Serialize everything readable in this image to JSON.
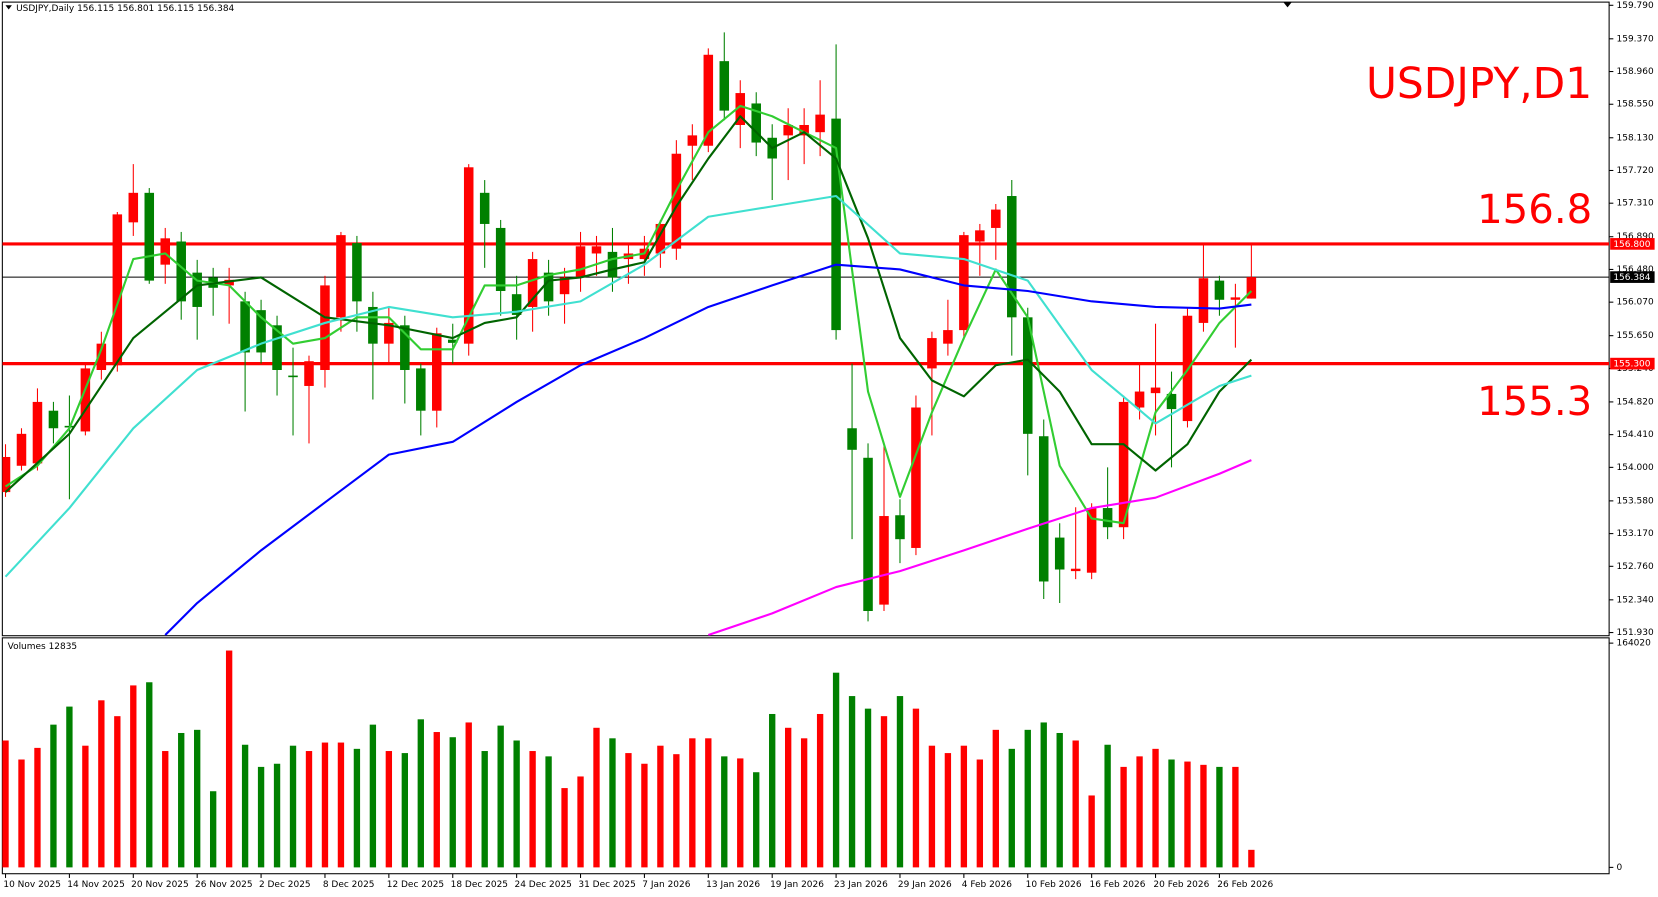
{
  "chart_data": {
    "type": "candlestick",
    "title": "USDJPY,D1",
    "header": "USDJPY,Daily  156.115 156.801 156.115 156.384",
    "up_color": "#ff0000",
    "down_color": "#008000",
    "categories": [
      "10 Nov 2025",
      null,
      null,
      null,
      "14 Nov 2025",
      null,
      null,
      null,
      "20 Nov 2025",
      null,
      null,
      null,
      "26 Nov 2025",
      null,
      null,
      null,
      "2 Dec 2025",
      null,
      null,
      null,
      "8 Dec 2025",
      null,
      null,
      null,
      "12 Dec 2025",
      null,
      null,
      null,
      "18 Dec 2025",
      null,
      null,
      null,
      "24 Dec 2025",
      null,
      null,
      null,
      "31 Dec 2025",
      null,
      null,
      null,
      "7 Jan 2026",
      null,
      null,
      null,
      "13 Jan 2026",
      null,
      null,
      null,
      "19 Jan 2026",
      null,
      null,
      null,
      "23 Jan 2026",
      null,
      null,
      null,
      "29 Jan 2026",
      null,
      null,
      null,
      "4 Feb 2026",
      null,
      null,
      null,
      "10 Feb 2026",
      null,
      null,
      null,
      "16 Feb 2026",
      null,
      null,
      null,
      "20 Feb 2026",
      null,
      null,
      null,
      "26 Feb 2026",
      null,
      null
    ],
    "open": [
      153.69,
      154.02,
      154.05,
      154.71,
      154.52,
      154.45,
      155.22,
      155.28,
      157.07,
      157.44,
      156.54,
      156.83,
      156.44,
      156.38,
      156.28,
      156.08,
      155.97,
      155.78,
      155.15,
      155.02,
      155.22,
      155.88,
      156.81,
      156.01,
      155.55,
      155.78,
      155.24,
      154.71,
      155.6,
      155.55,
      157.44,
      157.0,
      156.17,
      156.01,
      156.44,
      156.17,
      156.38,
      156.68,
      156.7,
      156.61,
      156.61,
      156.68,
      156.74,
      158.03,
      158.03,
      159.09,
      158.29,
      158.56,
      158.13,
      158.16,
      158.16,
      158.2,
      158.37,
      154.49,
      154.12,
      152.28,
      153.4,
      152.99,
      155.24,
      155.55,
      155.72,
      156.83,
      157.0,
      157.4,
      155.88,
      154.39,
      153.12,
      152.7,
      152.68,
      153.49,
      153.25,
      154.75,
      154.93,
      154.92,
      154.58,
      155.81,
      156.34,
      156.1,
      156.115
    ],
    "high": [
      154.29,
      154.49,
      154.99,
      154.82,
      154.9,
      155.3,
      155.7,
      157.2,
      157.8,
      157.5,
      157.0,
      156.95,
      156.6,
      156.5,
      156.5,
      156.2,
      156.1,
      155.9,
      155.5,
      155.4,
      156.4,
      156.95,
      156.9,
      156.2,
      156.0,
      155.9,
      155.3,
      155.75,
      155.8,
      157.8,
      157.6,
      157.1,
      156.4,
      156.7,
      156.6,
      156.5,
      156.95,
      156.9,
      157.0,
      156.8,
      156.9,
      157.1,
      158.1,
      158.3,
      159.25,
      159.45,
      158.85,
      158.7,
      158.3,
      158.5,
      158.5,
      158.85,
      159.3,
      155.3,
      154.3,
      154.3,
      153.6,
      154.9,
      155.7,
      156.1,
      156.95,
      157.05,
      157.3,
      157.6,
      156.0,
      154.6,
      153.3,
      153.5,
      153.55,
      154.0,
      154.9,
      155.3,
      155.8,
      155.2,
      156.0,
      156.8,
      156.4,
      156.3,
      156.801
    ],
    "low": [
      153.63,
      153.96,
      153.96,
      154.3,
      153.6,
      154.4,
      155.1,
      155.2,
      156.9,
      156.3,
      156.3,
      155.85,
      155.6,
      155.9,
      155.8,
      154.7,
      155.3,
      154.9,
      154.4,
      154.3,
      155.0,
      155.7,
      155.7,
      154.85,
      155.3,
      154.8,
      154.4,
      154.5,
      155.3,
      155.4,
      156.5,
      155.9,
      155.6,
      155.7,
      155.9,
      155.8,
      156.2,
      156.4,
      156.2,
      156.3,
      156.4,
      156.5,
      156.6,
      157.6,
      157.95,
      158.35,
      158.0,
      157.9,
      157.35,
      157.6,
      157.8,
      157.9,
      155.6,
      153.1,
      152.07,
      152.2,
      152.8,
      152.9,
      154.4,
      155.4,
      155.6,
      156.4,
      156.6,
      155.4,
      153.9,
      152.35,
      152.3,
      152.6,
      152.6,
      153.1,
      153.1,
      154.6,
      154.4,
      154.0,
      154.5,
      155.7,
      155.9,
      155.5,
      156.115
    ],
    "close": [
      154.13,
      154.42,
      154.82,
      154.49,
      154.5,
      155.24,
      155.55,
      157.17,
      157.44,
      156.34,
      156.87,
      156.08,
      156.01,
      156.25,
      156.35,
      155.44,
      155.44,
      155.22,
      155.13,
      155.33,
      156.28,
      156.91,
      156.08,
      155.55,
      155.81,
      155.22,
      154.71,
      155.68,
      155.56,
      157.76,
      157.05,
      156.21,
      155.91,
      156.61,
      156.08,
      156.38,
      156.77,
      156.77,
      156.38,
      156.68,
      156.74,
      157.05,
      157.93,
      158.16,
      159.17,
      158.47,
      158.69,
      158.07,
      157.87,
      158.29,
      158.29,
      158.42,
      155.72,
      154.22,
      152.2,
      153.39,
      153.1,
      154.75,
      155.62,
      155.72,
      156.91,
      156.97,
      157.23,
      155.88,
      154.42,
      152.57,
      152.72,
      152.73,
      153.49,
      153.25,
      154.82,
      154.95,
      155.0,
      154.73,
      155.9,
      156.37,
      156.1,
      156.13,
      156.384
    ],
    "ylim": [
      151.93,
      159.79
    ],
    "yticks": [
      {
        "value": 159.79,
        "label": "159.790"
      },
      {
        "value": 159.37,
        "label": "159.370"
      },
      {
        "value": 158.96,
        "label": "158.960"
      },
      {
        "value": 158.55,
        "label": "158.550"
      },
      {
        "value": 158.13,
        "label": "158.130"
      },
      {
        "value": 157.72,
        "label": "157.720"
      },
      {
        "value": 157.31,
        "label": "157.310"
      },
      {
        "value": 156.89,
        "label": "156.890"
      },
      {
        "value": 156.48,
        "label": "156.480"
      },
      {
        "value": 156.07,
        "label": "156.070"
      },
      {
        "value": 155.65,
        "label": "155.650"
      },
      {
        "value": 155.24,
        "label": "155.240"
      },
      {
        "value": 154.82,
        "label": "154.820"
      },
      {
        "value": 154.41,
        "label": "154.410"
      },
      {
        "value": 154.0,
        "label": "154.000"
      },
      {
        "value": 153.58,
        "label": "153.580"
      },
      {
        "value": 153.17,
        "label": "153.170"
      },
      {
        "value": 152.76,
        "label": "152.760"
      },
      {
        "value": 152.34,
        "label": "152.340"
      },
      {
        "value": 151.93,
        "label": "151.930"
      }
    ],
    "lines": [
      {
        "color": "#32cd32",
        "x": [
          0,
          2,
          4,
          6,
          8,
          10,
          12,
          14,
          16,
          18,
          20,
          22,
          24,
          26,
          28,
          30,
          32,
          34,
          36,
          38,
          40,
          42,
          44,
          46,
          48,
          50,
          52,
          54,
          56,
          58,
          60,
          62,
          64,
          66,
          68,
          70,
          72,
          74,
          76,
          78
        ],
        "values": [
          153.76,
          154.02,
          154.49,
          155.48,
          156.61,
          156.68,
          156.34,
          156.28,
          155.88,
          155.55,
          155.62,
          155.88,
          155.88,
          155.48,
          155.48,
          156.28,
          156.28,
          156.41,
          156.48,
          156.61,
          156.68,
          157.47,
          158.2,
          158.53,
          158.4,
          158.2,
          158.0,
          154.95,
          153.63,
          154.69,
          155.62,
          156.48,
          155.88,
          154.02,
          153.36,
          153.3,
          154.69,
          155.22,
          155.81,
          156.21
        ]
      },
      {
        "color": "#006400",
        "x": [
          0,
          4,
          8,
          12,
          16,
          20,
          24,
          28,
          30,
          32,
          34,
          36,
          38,
          40,
          42,
          44,
          46,
          48,
          50,
          52,
          54,
          56,
          58,
          60,
          62,
          64,
          66,
          68,
          70,
          72,
          74,
          76,
          78
        ],
        "values": [
          153.69,
          154.42,
          155.62,
          156.28,
          156.38,
          155.88,
          155.78,
          155.62,
          155.81,
          155.88,
          156.34,
          156.38,
          156.48,
          156.57,
          157.27,
          157.87,
          158.4,
          158.0,
          158.2,
          157.87,
          156.87,
          155.62,
          155.09,
          154.89,
          155.28,
          155.35,
          154.95,
          154.29,
          154.29,
          153.96,
          154.29,
          154.95,
          155.35
        ]
      },
      {
        "color": "#40e0d0",
        "x": [
          0,
          4,
          8,
          12,
          16,
          20,
          24,
          28,
          32,
          36,
          40,
          44,
          48,
          52,
          56,
          60,
          64,
          68,
          72,
          76,
          78
        ],
        "values": [
          152.63,
          153.49,
          154.49,
          155.22,
          155.55,
          155.81,
          156.01,
          155.88,
          155.95,
          156.08,
          156.54,
          157.14,
          157.27,
          157.4,
          156.68,
          156.61,
          156.34,
          155.22,
          154.55,
          155.02,
          155.15
        ]
      },
      {
        "color": "#0000ff",
        "x": [
          10,
          12,
          16,
          20,
          24,
          28,
          32,
          36,
          40,
          44,
          48,
          52,
          56,
          60,
          64,
          68,
          72,
          76,
          78
        ],
        "values": [
          151.9,
          152.3,
          152.96,
          153.56,
          154.16,
          154.32,
          154.82,
          155.28,
          155.62,
          156.01,
          156.28,
          156.54,
          156.48,
          156.28,
          156.21,
          156.08,
          156.01,
          155.99,
          156.04
        ]
      },
      {
        "color": "#ff00ff",
        "x": [
          44,
          48,
          52,
          56,
          60,
          64,
          68,
          72,
          76,
          78
        ],
        "values": [
          151.9,
          152.17,
          152.5,
          152.7,
          152.96,
          153.23,
          153.49,
          153.62,
          153.92,
          154.09
        ]
      }
    ],
    "hlines": [
      {
        "value": 156.8,
        "label": "156.8",
        "axis_label": "156.800",
        "color": "#ff0000"
      },
      {
        "value": 155.3,
        "label": "155.3",
        "axis_label": "155.300",
        "color": "#ff0000"
      },
      {
        "value": 156.384,
        "axis_label": "156.384",
        "color": "#000000"
      }
    ],
    "volume": {
      "label": "Volumes 12835",
      "values": [
        92800,
        78900,
        87400,
        104400,
        117600,
        89000,
        122200,
        110600,
        133100,
        135400,
        85100,
        98300,
        100600,
        55700,
        158600,
        89700,
        73500,
        75800,
        89000,
        85100,
        91300,
        91300,
        86700,
        104400,
        85100,
        83600,
        108300,
        99000,
        95200,
        106000,
        85100,
        103700,
        92800,
        85100,
        81200,
        58000,
        66500,
        102100,
        94400,
        83600,
        75800,
        89000,
        82800,
        94400,
        94400,
        81200,
        79700,
        69600,
        112200,
        102100,
        94400,
        112200,
        142400,
        125300,
        116100,
        110600,
        125300,
        116100,
        89000,
        83600,
        89000,
        78900,
        100600,
        86700,
        100600,
        106000,
        98300,
        92800,
        52600,
        89700,
        73500,
        81200,
        86700,
        78900,
        77400,
        75000,
        73500,
        73500,
        12835
      ],
      "ylim": [
        0,
        164020
      ],
      "yticks": [
        164020,
        0
      ]
    }
  }
}
